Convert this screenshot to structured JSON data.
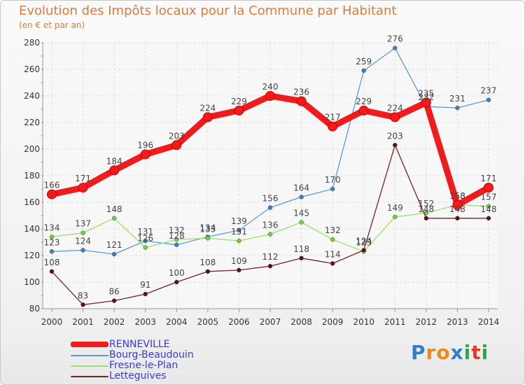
{
  "title": "Evolution des Impôts locaux pour la Commune par Habitant",
  "subtitle": "(en € et par an)",
  "logo": {
    "letters": [
      "P",
      "r",
      "o",
      "x",
      "i",
      "t",
      "i"
    ],
    "colors": [
      "#2f80c8",
      "#e98a1e",
      "#e98a1e",
      "#2f80c8",
      "#3aa14a",
      "#e23b2d",
      "#3aa14a"
    ]
  },
  "chart_data": {
    "type": "line",
    "x": [
      "2000",
      "2001",
      "2002",
      "2003",
      "2004",
      "2005",
      "2006",
      "2007",
      "2008",
      "2009",
      "2010",
      "2011",
      "2012",
      "2013",
      "2014"
    ],
    "ylim": [
      80,
      280
    ],
    "yticks": [
      "80",
      "100",
      "120",
      "140",
      "160",
      "180",
      "200",
      "220",
      "240",
      "260",
      "280"
    ],
    "grid": true,
    "legend_position": "bottom-left",
    "series": [
      {
        "name": "Bourg-Beaudouin",
        "color": "#5b9bd5",
        "values": [
          123,
          124,
          121,
          131,
          128,
          134,
          139,
          156,
          164,
          170,
          259,
          276,
          232,
          231,
          237
        ],
        "labels": [
          "123",
          "124",
          "121",
          "131",
          "128",
          "134",
          "139",
          "156",
          "164",
          "170",
          "259",
          "276",
          "232",
          "231",
          "237"
        ]
      },
      {
        "name": "Fresne-le-Plan",
        "color": "#9ae06f",
        "values": [
          134,
          137,
          148,
          126,
          132,
          133,
          131,
          136,
          145,
          132,
          123,
          149,
          152,
          158,
          157
        ],
        "labels": [
          "134",
          "137",
          "148",
          "126",
          "132",
          "133",
          "131",
          "136",
          "145",
          "132",
          "123",
          "149",
          "152",
          "158",
          "157"
        ]
      },
      {
        "name": "Letteguives",
        "color": "#7a2020",
        "values": [
          108,
          83,
          86,
          91,
          100,
          108,
          109,
          112,
          118,
          114,
          124,
          203,
          148,
          148,
          148
        ],
        "labels": [
          "108",
          "83",
          "86",
          "91",
          "100",
          "108",
          "109",
          "112",
          "118",
          "114",
          "124",
          "203",
          "148",
          "148",
          "148"
        ]
      },
      {
        "name": "RENNEVILLE",
        "color": "#ee1c1c",
        "values": [
          166,
          171,
          184,
          196,
          203,
          224,
          229,
          240,
          236,
          217,
          229,
          224,
          235,
          158,
          171
        ],
        "labels": [
          "166",
          "171",
          "184",
          "196",
          "203",
          "224",
          "229",
          "240",
          "236",
          "217",
          "229",
          "224",
          "235",
          "158",
          "171"
        ]
      }
    ]
  },
  "legend": [
    {
      "name": "RENNEVILLE",
      "color": "#ee1c1c"
    },
    {
      "name": "Bourg-Beaudouin",
      "color": "#5b9bd5"
    },
    {
      "name": "Fresne-le-Plan",
      "color": "#9ae06f"
    },
    {
      "name": "Letteguives",
      "color": "#7a2020"
    }
  ]
}
